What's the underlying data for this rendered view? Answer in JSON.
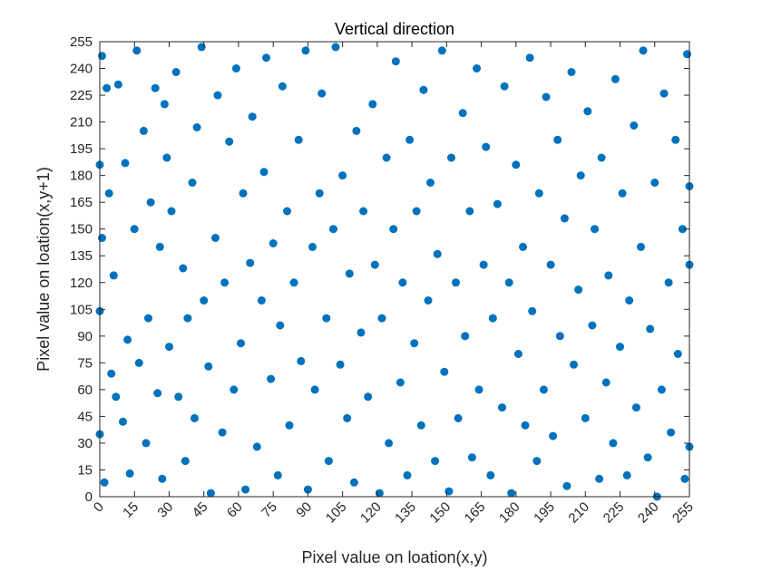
{
  "chart_data": {
    "type": "scatter",
    "title": "Vertical direction",
    "xlabel": "Pixel value on loation(x,y)",
    "ylabel": "Pixel value on loation(x,y+1)",
    "xlim": [
      0,
      255
    ],
    "ylim": [
      0,
      255
    ],
    "xticks": [
      "0",
      "15",
      "30",
      "45",
      "60",
      "75",
      "90",
      "105",
      "120",
      "135",
      "150",
      "165",
      "180",
      "195",
      "210",
      "225",
      "240",
      "255"
    ],
    "yticks": [
      "0",
      "15",
      "30",
      "45",
      "60",
      "75",
      "90",
      "105",
      "120",
      "135",
      "150",
      "165",
      "180",
      "195",
      "210",
      "225",
      "240",
      "255"
    ],
    "grid": false,
    "legend": "none",
    "marker_color": "#0072BD",
    "series": [
      {
        "points": [
          [
            0,
            104
          ],
          [
            0,
            186
          ],
          [
            0,
            35
          ],
          [
            1,
            145
          ],
          [
            1,
            247
          ],
          [
            2,
            8
          ],
          [
            3,
            229
          ],
          [
            4,
            170
          ],
          [
            5,
            69
          ],
          [
            6,
            124
          ],
          [
            7,
            56
          ],
          [
            8,
            231
          ],
          [
            10,
            42
          ],
          [
            11,
            187
          ],
          [
            12,
            88
          ],
          [
            13,
            13
          ],
          [
            15,
            150
          ],
          [
            16,
            250
          ],
          [
            17,
            75
          ],
          [
            19,
            205
          ],
          [
            20,
            30
          ],
          [
            21,
            100
          ],
          [
            22,
            165
          ],
          [
            24,
            229
          ],
          [
            25,
            58
          ],
          [
            26,
            140
          ],
          [
            27,
            10
          ],
          [
            28,
            220
          ],
          [
            29,
            190
          ],
          [
            30,
            84
          ],
          [
            31,
            160
          ],
          [
            33,
            238
          ],
          [
            34,
            56
          ],
          [
            36,
            128
          ],
          [
            37,
            20
          ],
          [
            38,
            100
          ],
          [
            40,
            176
          ],
          [
            41,
            44
          ],
          [
            42,
            207
          ],
          [
            44,
            252
          ],
          [
            45,
            110
          ],
          [
            47,
            73
          ],
          [
            48,
            2
          ],
          [
            50,
            145
          ],
          [
            51,
            225
          ],
          [
            53,
            36
          ],
          [
            54,
            120
          ],
          [
            56,
            199
          ],
          [
            58,
            60
          ],
          [
            59,
            240
          ],
          [
            61,
            86
          ],
          [
            62,
            170
          ],
          [
            63,
            4
          ],
          [
            65,
            131
          ],
          [
            66,
            213
          ],
          [
            68,
            28
          ],
          [
            70,
            110
          ],
          [
            71,
            182
          ],
          [
            72,
            246
          ],
          [
            74,
            66
          ],
          [
            75,
            142
          ],
          [
            77,
            12
          ],
          [
            78,
            96
          ],
          [
            79,
            230
          ],
          [
            81,
            160
          ],
          [
            82,
            40
          ],
          [
            84,
            120
          ],
          [
            86,
            200
          ],
          [
            87,
            76
          ],
          [
            89,
            250
          ],
          [
            90,
            4
          ],
          [
            92,
            140
          ],
          [
            93,
            60
          ],
          [
            95,
            170
          ],
          [
            96,
            226
          ],
          [
            98,
            100
          ],
          [
            99,
            20
          ],
          [
            101,
            150
          ],
          [
            102,
            252
          ],
          [
            104,
            74
          ],
          [
            105,
            180
          ],
          [
            107,
            44
          ],
          [
            108,
            125
          ],
          [
            110,
            8
          ],
          [
            111,
            205
          ],
          [
            113,
            92
          ],
          [
            114,
            160
          ],
          [
            116,
            56
          ],
          [
            118,
            220
          ],
          [
            119,
            130
          ],
          [
            121,
            2
          ],
          [
            122,
            100
          ],
          [
            124,
            190
          ],
          [
            125,
            30
          ],
          [
            127,
            150
          ],
          [
            128,
            244
          ],
          [
            130,
            64
          ],
          [
            131,
            120
          ],
          [
            133,
            12
          ],
          [
            134,
            200
          ],
          [
            136,
            86
          ],
          [
            137,
            160
          ],
          [
            139,
            40
          ],
          [
            140,
            228
          ],
          [
            142,
            110
          ],
          [
            143,
            176
          ],
          [
            145,
            20
          ],
          [
            146,
            136
          ],
          [
            148,
            250
          ],
          [
            149,
            70
          ],
          [
            151,
            3
          ],
          [
            152,
            190
          ],
          [
            154,
            120
          ],
          [
            155,
            44
          ],
          [
            157,
            215
          ],
          [
            158,
            90
          ],
          [
            160,
            160
          ],
          [
            161,
            22
          ],
          [
            163,
            240
          ],
          [
            164,
            60
          ],
          [
            166,
            130
          ],
          [
            167,
            196
          ],
          [
            169,
            12
          ],
          [
            170,
            100
          ],
          [
            172,
            164
          ],
          [
            174,
            50
          ],
          [
            175,
            230
          ],
          [
            177,
            120
          ],
          [
            178,
            2
          ],
          [
            180,
            186
          ],
          [
            181,
            80
          ],
          [
            183,
            140
          ],
          [
            184,
            40
          ],
          [
            186,
            246
          ],
          [
            187,
            104
          ],
          [
            189,
            20
          ],
          [
            190,
            170
          ],
          [
            192,
            60
          ],
          [
            193,
            224
          ],
          [
            195,
            130
          ],
          [
            196,
            34
          ],
          [
            198,
            200
          ],
          [
            199,
            90
          ],
          [
            201,
            156
          ],
          [
            202,
            6
          ],
          [
            204,
            238
          ],
          [
            205,
            74
          ],
          [
            207,
            116
          ],
          [
            208,
            180
          ],
          [
            210,
            44
          ],
          [
            211,
            216
          ],
          [
            213,
            96
          ],
          [
            214,
            150
          ],
          [
            216,
            10
          ],
          [
            217,
            190
          ],
          [
            219,
            64
          ],
          [
            220,
            124
          ],
          [
            222,
            30
          ],
          [
            223,
            234
          ],
          [
            225,
            84
          ],
          [
            226,
            170
          ],
          [
            228,
            12
          ],
          [
            229,
            110
          ],
          [
            231,
            208
          ],
          [
            232,
            50
          ],
          [
            234,
            140
          ],
          [
            235,
            250
          ],
          [
            237,
            22
          ],
          [
            238,
            94
          ],
          [
            240,
            176
          ],
          [
            241,
            0
          ],
          [
            243,
            60
          ],
          [
            244,
            226
          ],
          [
            246,
            120
          ],
          [
            247,
            36
          ],
          [
            249,
            200
          ],
          [
            250,
            80
          ],
          [
            252,
            150
          ],
          [
            253,
            10
          ],
          [
            254,
            248
          ],
          [
            255,
            28
          ],
          [
            255,
            174
          ],
          [
            255,
            130
          ]
        ]
      }
    ]
  }
}
